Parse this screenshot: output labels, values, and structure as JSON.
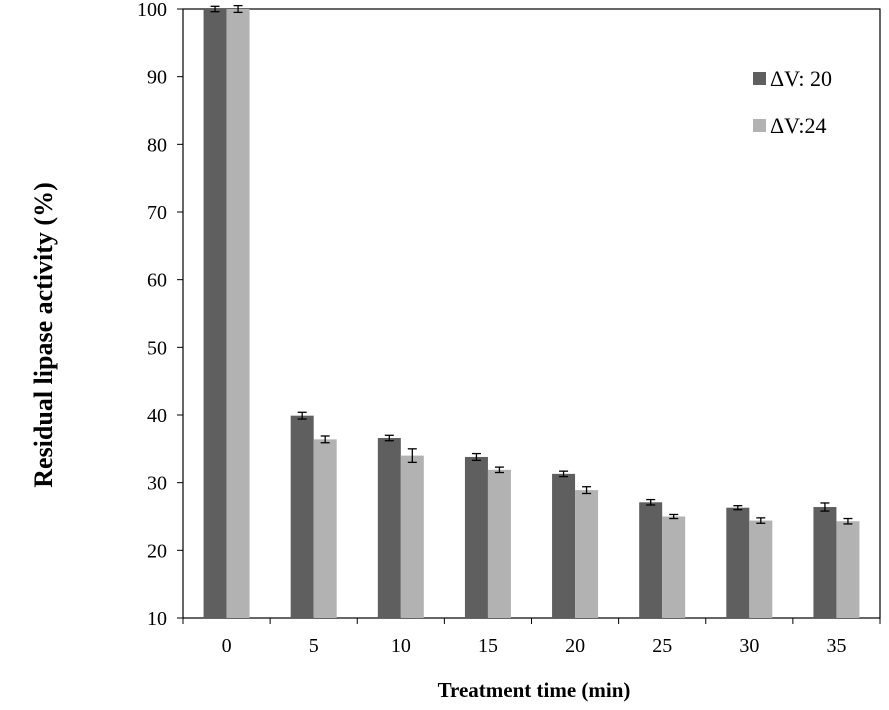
{
  "chart_data": {
    "type": "bar",
    "title": "",
    "xlabel": "Treatment time (min)",
    "ylabel": "Residual lipase activity (%)",
    "ylim": [
      10,
      100
    ],
    "yticks": [
      10,
      20,
      30,
      40,
      50,
      60,
      70,
      80,
      90,
      100
    ],
    "categories": [
      "0",
      "5",
      "10",
      "15",
      "20",
      "25",
      "30",
      "35"
    ],
    "grid": false,
    "legend_position": "top-right",
    "error_bars": true,
    "series": [
      {
        "name": "ΔV: 20",
        "color": "#5f5f5f",
        "values": [
          100.0,
          39.9,
          36.6,
          33.8,
          31.3,
          27.1,
          26.3,
          26.4
        ],
        "errors": [
          0.4,
          0.5,
          0.4,
          0.5,
          0.4,
          0.4,
          0.3,
          0.6
        ]
      },
      {
        "name": "ΔV:24",
        "color": "#b2b2b2",
        "values": [
          100.0,
          36.4,
          34.0,
          31.9,
          28.9,
          25.0,
          24.4,
          24.3
        ],
        "errors": [
          0.5,
          0.5,
          1.0,
          0.4,
          0.5,
          0.3,
          0.4,
          0.4
        ]
      }
    ]
  }
}
